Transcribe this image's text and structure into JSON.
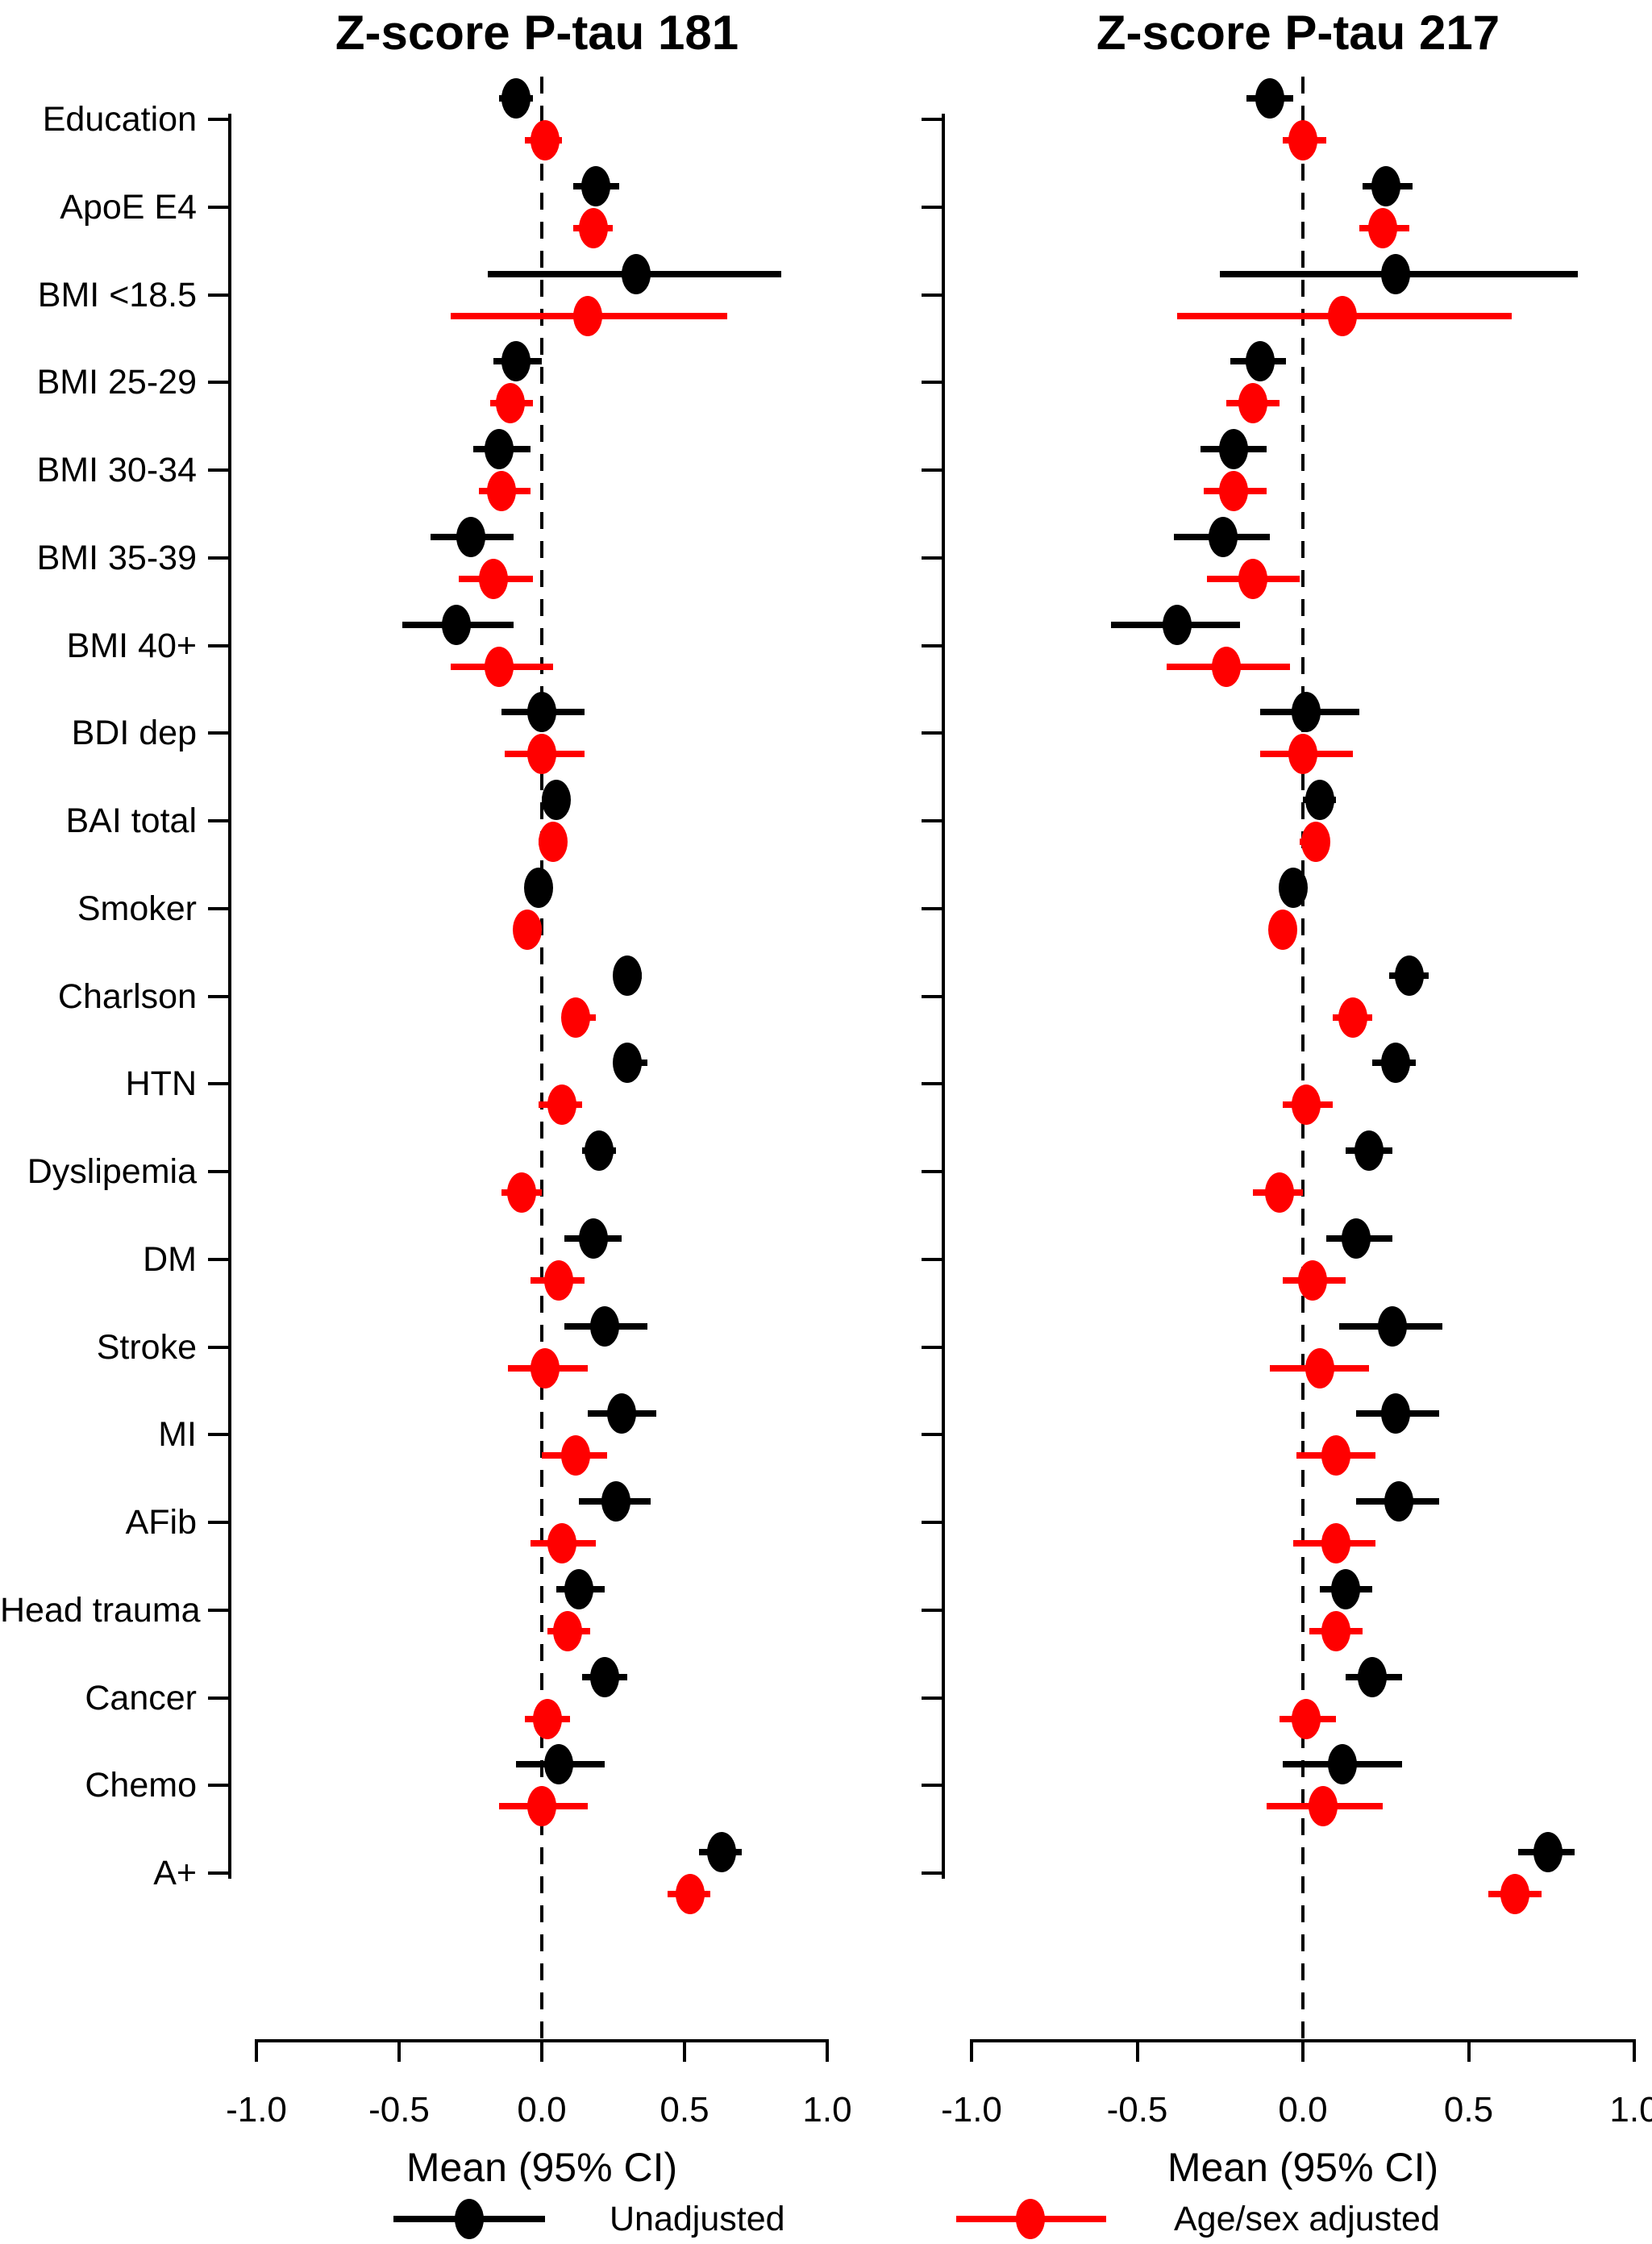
{
  "figure": {
    "background": "#ffffff",
    "legend": {
      "items": [
        {
          "label": "Unadjusted",
          "color": "#000000",
          "marker": "filled-circle-with-line"
        },
        {
          "label": "Age/sex adjusted",
          "color": "#ff0000",
          "marker": "filled-circle-with-line"
        }
      ]
    }
  },
  "categories": [
    "Education",
    "ApoE E4",
    "BMI <18.5",
    "BMI 25-29",
    "BMI 30-34",
    "BMI 35-39",
    "BMI 40+",
    "BDI dep",
    "BAI total",
    "Smoker",
    "Charlson",
    "HTN",
    "Dyslipemia",
    "DM",
    "Stroke",
    "MI",
    "AFib",
    "Head trauma",
    "Cancer",
    "Chemo",
    "A+"
  ],
  "chart_data": [
    {
      "type": "scatter",
      "subtype": "forest-plot",
      "title": "Z-score P-tau 181",
      "xlabel": "Mean (95% CI)",
      "xlim": [
        -1.15,
        1.15
      ],
      "x_ticks": [
        -1.0,
        -0.5,
        0.0,
        0.5,
        1.0
      ],
      "x_tick_labels": [
        "-1.0",
        "-0.5",
        "0.0",
        "0.5",
        "1.0"
      ],
      "zero_reference_line": 0,
      "grid": false,
      "legend_position": "bottom",
      "categories": [
        "Education",
        "ApoE E4",
        "BMI <18.5",
        "BMI 25-29",
        "BMI 30-34",
        "BMI 35-39",
        "BMI 40+",
        "BDI dep",
        "BAI total",
        "Smoker",
        "Charlson",
        "HTN",
        "Dyslipemia",
        "DM",
        "Stroke",
        "MI",
        "AFib",
        "Head trauma",
        "Cancer",
        "Chemo",
        "A+"
      ],
      "series": [
        {
          "name": "Unadjusted",
          "color": "#000000",
          "points": [
            {
              "mean": -0.09,
              "lo": -0.15,
              "hi": -0.03
            },
            {
              "mean": 0.19,
              "lo": 0.11,
              "hi": 0.27
            },
            {
              "mean": 0.33,
              "lo": -0.19,
              "hi": 0.84
            },
            {
              "mean": -0.09,
              "lo": -0.17,
              "hi": 0.0
            },
            {
              "mean": -0.15,
              "lo": -0.24,
              "hi": -0.04
            },
            {
              "mean": -0.25,
              "lo": -0.39,
              "hi": -0.1
            },
            {
              "mean": -0.3,
              "lo": -0.49,
              "hi": -0.1
            },
            {
              "mean": 0.0,
              "lo": -0.14,
              "hi": 0.15
            },
            {
              "mean": 0.05,
              "lo": 0.0,
              "hi": 0.1
            },
            {
              "mean": -0.01,
              "lo": -0.04,
              "hi": 0.02
            },
            {
              "mean": 0.3,
              "lo": 0.25,
              "hi": 0.35
            },
            {
              "mean": 0.3,
              "lo": 0.25,
              "hi": 0.37
            },
            {
              "mean": 0.2,
              "lo": 0.14,
              "hi": 0.26
            },
            {
              "mean": 0.18,
              "lo": 0.08,
              "hi": 0.28
            },
            {
              "mean": 0.22,
              "lo": 0.08,
              "hi": 0.37
            },
            {
              "mean": 0.28,
              "lo": 0.16,
              "hi": 0.4
            },
            {
              "mean": 0.26,
              "lo": 0.13,
              "hi": 0.38
            },
            {
              "mean": 0.13,
              "lo": 0.05,
              "hi": 0.22
            },
            {
              "mean": 0.22,
              "lo": 0.14,
              "hi": 0.3
            },
            {
              "mean": 0.06,
              "lo": -0.09,
              "hi": 0.22
            },
            {
              "mean": 0.63,
              "lo": 0.55,
              "hi": 0.7
            }
          ]
        },
        {
          "name": "Age/sex adjusted",
          "color": "#ff0000",
          "points": [
            {
              "mean": 0.01,
              "lo": -0.06,
              "hi": 0.07
            },
            {
              "mean": 0.18,
              "lo": 0.11,
              "hi": 0.25
            },
            {
              "mean": 0.16,
              "lo": -0.32,
              "hi": 0.65
            },
            {
              "mean": -0.11,
              "lo": -0.18,
              "hi": -0.03
            },
            {
              "mean": -0.14,
              "lo": -0.22,
              "hi": -0.04
            },
            {
              "mean": -0.17,
              "lo": -0.29,
              "hi": -0.03
            },
            {
              "mean": -0.15,
              "lo": -0.32,
              "hi": 0.04
            },
            {
              "mean": 0.0,
              "lo": -0.13,
              "hi": 0.15
            },
            {
              "mean": 0.04,
              "lo": -0.01,
              "hi": 0.08
            },
            {
              "mean": -0.05,
              "lo": -0.08,
              "hi": -0.02
            },
            {
              "mean": 0.12,
              "lo": 0.07,
              "hi": 0.19
            },
            {
              "mean": 0.07,
              "lo": -0.01,
              "hi": 0.14
            },
            {
              "mean": -0.07,
              "lo": -0.14,
              "hi": 0.0
            },
            {
              "mean": 0.06,
              "lo": -0.04,
              "hi": 0.15
            },
            {
              "mean": 0.01,
              "lo": -0.12,
              "hi": 0.16
            },
            {
              "mean": 0.12,
              "lo": 0.0,
              "hi": 0.23
            },
            {
              "mean": 0.07,
              "lo": -0.04,
              "hi": 0.19
            },
            {
              "mean": 0.09,
              "lo": 0.02,
              "hi": 0.17
            },
            {
              "mean": 0.02,
              "lo": -0.06,
              "hi": 0.1
            },
            {
              "mean": 0.0,
              "lo": -0.15,
              "hi": 0.16
            },
            {
              "mean": 0.52,
              "lo": 0.44,
              "hi": 0.59
            }
          ]
        }
      ]
    },
    {
      "type": "scatter",
      "subtype": "forest-plot",
      "title": "Z-score P-tau 217",
      "xlabel": "Mean (95% CI)",
      "xlim": [
        -1.15,
        1.15
      ],
      "x_ticks": [
        -1.0,
        -0.5,
        0.0,
        0.5,
        1.0
      ],
      "x_tick_labels": [
        "-1.0",
        "-0.5",
        "0.0",
        "0.5",
        "1.0"
      ],
      "zero_reference_line": 0,
      "grid": false,
      "legend_position": "bottom",
      "categories": [
        "Education",
        "ApoE E4",
        "BMI <18.5",
        "BMI 25-29",
        "BMI 30-34",
        "BMI 35-39",
        "BMI 40+",
        "BDI dep",
        "BAI total",
        "Smoker",
        "Charlson",
        "HTN",
        "Dyslipemia",
        "DM",
        "Stroke",
        "MI",
        "AFib",
        "Head trauma",
        "Cancer",
        "Chemo",
        "A+"
      ],
      "series": [
        {
          "name": "Unadjusted",
          "color": "#000000",
          "points": [
            {
              "mean": -0.1,
              "lo": -0.17,
              "hi": -0.03
            },
            {
              "mean": 0.25,
              "lo": 0.18,
              "hi": 0.33
            },
            {
              "mean": 0.28,
              "lo": -0.25,
              "hi": 0.83
            },
            {
              "mean": -0.13,
              "lo": -0.22,
              "hi": -0.05
            },
            {
              "mean": -0.21,
              "lo": -0.31,
              "hi": -0.11
            },
            {
              "mean": -0.24,
              "lo": -0.39,
              "hi": -0.1
            },
            {
              "mean": -0.38,
              "lo": -0.58,
              "hi": -0.19
            },
            {
              "mean": 0.01,
              "lo": -0.13,
              "hi": 0.17
            },
            {
              "mean": 0.05,
              "lo": 0.0,
              "hi": 0.1
            },
            {
              "mean": -0.03,
              "lo": -0.05,
              "hi": 0.0
            },
            {
              "mean": 0.32,
              "lo": 0.26,
              "hi": 0.38
            },
            {
              "mean": 0.28,
              "lo": 0.21,
              "hi": 0.34
            },
            {
              "mean": 0.2,
              "lo": 0.13,
              "hi": 0.27
            },
            {
              "mean": 0.16,
              "lo": 0.07,
              "hi": 0.27
            },
            {
              "mean": 0.27,
              "lo": 0.11,
              "hi": 0.42
            },
            {
              "mean": 0.28,
              "lo": 0.16,
              "hi": 0.41
            },
            {
              "mean": 0.29,
              "lo": 0.16,
              "hi": 0.41
            },
            {
              "mean": 0.13,
              "lo": 0.05,
              "hi": 0.21
            },
            {
              "mean": 0.21,
              "lo": 0.13,
              "hi": 0.3
            },
            {
              "mean": 0.12,
              "lo": -0.06,
              "hi": 0.3
            },
            {
              "mean": 0.74,
              "lo": 0.65,
              "hi": 0.82
            }
          ]
        },
        {
          "name": "Age/sex adjusted",
          "color": "#ff0000",
          "points": [
            {
              "mean": 0.0,
              "lo": -0.06,
              "hi": 0.07
            },
            {
              "mean": 0.24,
              "lo": 0.17,
              "hi": 0.32
            },
            {
              "mean": 0.12,
              "lo": -0.38,
              "hi": 0.63
            },
            {
              "mean": -0.15,
              "lo": -0.23,
              "hi": -0.07
            },
            {
              "mean": -0.21,
              "lo": -0.3,
              "hi": -0.11
            },
            {
              "mean": -0.15,
              "lo": -0.29,
              "hi": -0.01
            },
            {
              "mean": -0.23,
              "lo": -0.41,
              "hi": -0.04
            },
            {
              "mean": 0.0,
              "lo": -0.13,
              "hi": 0.15
            },
            {
              "mean": 0.04,
              "lo": -0.01,
              "hi": 0.08
            },
            {
              "mean": -0.06,
              "lo": -0.09,
              "hi": -0.03
            },
            {
              "mean": 0.15,
              "lo": 0.09,
              "hi": 0.21
            },
            {
              "mean": 0.01,
              "lo": -0.06,
              "hi": 0.09
            },
            {
              "mean": -0.07,
              "lo": -0.15,
              "hi": 0.0
            },
            {
              "mean": 0.03,
              "lo": -0.06,
              "hi": 0.13
            },
            {
              "mean": 0.05,
              "lo": -0.1,
              "hi": 0.2
            },
            {
              "mean": 0.1,
              "lo": -0.02,
              "hi": 0.22
            },
            {
              "mean": 0.1,
              "lo": -0.03,
              "hi": 0.22
            },
            {
              "mean": 0.1,
              "lo": 0.02,
              "hi": 0.18
            },
            {
              "mean": 0.01,
              "lo": -0.07,
              "hi": 0.1
            },
            {
              "mean": 0.06,
              "lo": -0.11,
              "hi": 0.24
            },
            {
              "mean": 0.64,
              "lo": 0.56,
              "hi": 0.72
            }
          ]
        }
      ]
    }
  ]
}
